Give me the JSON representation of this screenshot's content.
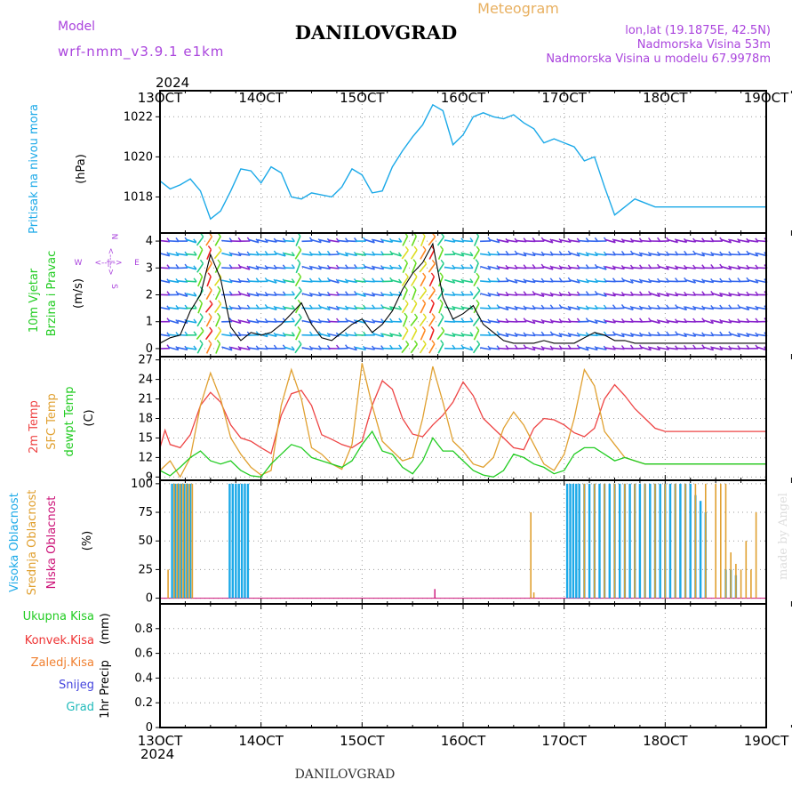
{
  "header": {
    "title": "DANILOVGRAD",
    "subtitle": "Meteogram",
    "model_label": "Model",
    "model_name": "wrf-nmm_v3.9.1  e1km",
    "lonlat": "lon,lat (19.1875E, 42.5N)",
    "elevation": "Nadmorska Visina 53m",
    "model_elevation": "Nadmorska Visina u modelu 67.9978m",
    "credit": "made by Angel",
    "footer": "DANILOVGRAD"
  },
  "colors": {
    "pressure": "#1ba9e8",
    "wind_speed": "#000000",
    "temp2m": "#ee4444",
    "sfc_temp": "#e0a030",
    "dewpoint": "#22cc22",
    "cloud_high": "#1ba9e8",
    "cloud_mid": "#e0a030",
    "cloud_low": "#cc1177",
    "precip_total": "#22cc22",
    "precip_conv": "#ee3333",
    "precip_frz": "#f08030",
    "snow": "#4444dd",
    "hail": "#22bbbb",
    "compass": "#aa44dd",
    "model_text": "#aa44dd",
    "grid": "#999999"
  },
  "chart_data": [
    {
      "type": "line",
      "id": "pressure",
      "ylabel": "Pritisak na nivou mora",
      "unit": "(hPa)",
      "ylim": [
        1016.2,
        1023.3
      ],
      "yticks": [
        1018,
        1020,
        1022
      ],
      "x_ticks": [
        "13OCT",
        "14OCT",
        "15OCT",
        "16OCT",
        "17OCT",
        "18OCT",
        "19OCT"
      ],
      "year": "2024",
      "series": [
        {
          "color_key": "pressure",
          "x": [
            0,
            0.1,
            0.2,
            0.3,
            0.4,
            0.5,
            0.6,
            0.7,
            0.8,
            0.9,
            1.0,
            1.1,
            1.2,
            1.3,
            1.4,
            1.5,
            1.6,
            1.7,
            1.8,
            1.9,
            2.0,
            2.1,
            2.2,
            2.3,
            2.4,
            2.5,
            2.6,
            2.7,
            2.8,
            2.9,
            3.0,
            3.1,
            3.2,
            3.3,
            3.4,
            3.5,
            3.6,
            3.7,
            3.8,
            3.9,
            4.0,
            4.1,
            4.2,
            4.3,
            4.4,
            4.5,
            4.6,
            4.7,
            4.8,
            4.9,
            5.0,
            5.1,
            5.2,
            5.3,
            5.4,
            5.5,
            5.6,
            5.7,
            5.8,
            5.9,
            6.0
          ],
          "y": [
            1018.8,
            1018.4,
            1018.6,
            1018.9,
            1018.3,
            1016.9,
            1017.3,
            1018.3,
            1019.4,
            1019.3,
            1018.7,
            1019.5,
            1019.2,
            1018.0,
            1017.9,
            1018.2,
            1018.1,
            1018.0,
            1018.5,
            1019.4,
            1019.1,
            1018.2,
            1018.3,
            1019.5,
            1020.3,
            1021.0,
            1021.6,
            1022.6,
            1022.3,
            1020.6,
            1021.1,
            1022.0,
            1022.2,
            1022.0,
            1021.9,
            1022.1,
            1021.7,
            1021.4,
            1020.7,
            1020.9,
            1020.7,
            1020.5,
            1019.8,
            1020.0,
            1018.5,
            1017.1,
            1017.5,
            1017.9,
            1017.7,
            1017.5,
            1017.5,
            1017.5,
            1017.5,
            1017.5,
            1017.5,
            1017.5,
            1017.5,
            1017.5,
            1017.5,
            1017.5,
            1017.5
          ]
        }
      ]
    },
    {
      "type": "line",
      "id": "wind",
      "ylabel_1": "10m Vjetar",
      "ylabel_2": "Brzina i Pravac",
      "unit": "(m/s)",
      "compass": {
        "n": "N",
        "s": "S",
        "e": "E",
        "w": "W",
        "arrows": "<--|-->"
      },
      "ylim": [
        -0.3,
        4.3
      ],
      "yticks": [
        0,
        1,
        2,
        3,
        4
      ],
      "speed": {
        "x": [
          0,
          0.1,
          0.2,
          0.3,
          0.4,
          0.5,
          0.6,
          0.7,
          0.8,
          0.9,
          1.0,
          1.1,
          1.2,
          1.3,
          1.4,
          1.5,
          1.6,
          1.7,
          1.8,
          1.9,
          2.0,
          2.1,
          2.2,
          2.3,
          2.4,
          2.5,
          2.6,
          2.7,
          2.8,
          2.9,
          3.0,
          3.1,
          3.2,
          3.3,
          3.4,
          3.5,
          3.6,
          3.7,
          3.8,
          3.9,
          4.0,
          4.1,
          4.2,
          4.3,
          4.4,
          4.5,
          4.6,
          4.7,
          4.8,
          4.9,
          5.0,
          5.1,
          5.2,
          5.3,
          5.4,
          5.5,
          5.6,
          5.7,
          5.8,
          5.9,
          6.0
        ],
        "y": [
          0.2,
          0.4,
          0.5,
          1.4,
          2.0,
          3.5,
          2.6,
          0.8,
          0.3,
          0.6,
          0.5,
          0.6,
          0.9,
          1.3,
          1.7,
          0.9,
          0.4,
          0.3,
          0.6,
          0.9,
          1.1,
          0.6,
          0.9,
          1.4,
          2.2,
          2.8,
          3.2,
          3.9,
          1.9,
          1.1,
          1.3,
          1.6,
          0.9,
          0.6,
          0.3,
          0.2,
          0.2,
          0.2,
          0.3,
          0.2,
          0.2,
          0.2,
          0.4,
          0.6,
          0.5,
          0.3,
          0.3,
          0.2,
          0.2,
          0.2,
          0.2,
          0.2,
          0.2,
          0.2,
          0.2,
          0.2,
          0.2,
          0.2,
          0.2,
          0.2,
          0.2
        ]
      },
      "barb_rows": [
        0,
        0.5,
        1,
        1.5,
        2,
        2.5,
        3,
        3.5,
        4
      ]
    },
    {
      "type": "line",
      "id": "temperature",
      "ylabel_1": "2m Temp",
      "ylabel_2": "SFC Temp",
      "ylabel_3": "dewpt Temp",
      "unit": "(C)",
      "ylim": [
        8.5,
        27.5
      ],
      "yticks": [
        9,
        12,
        15,
        18,
        21,
        24,
        27
      ],
      "series": [
        {
          "name": "2m Temp",
          "color_key": "temp2m",
          "x": [
            0,
            0.05,
            0.1,
            0.2,
            0.3,
            0.4,
            0.5,
            0.6,
            0.7,
            0.8,
            0.9,
            1.0,
            1.1,
            1.2,
            1.3,
            1.4,
            1.5,
            1.6,
            1.7,
            1.8,
            1.9,
            2.0,
            2.1,
            2.2,
            2.3,
            2.4,
            2.5,
            2.6,
            2.7,
            2.8,
            2.9,
            3.0,
            3.1,
            3.2,
            3.3,
            3.4,
            3.5,
            3.6,
            3.7,
            3.8,
            3.9,
            4.0,
            4.1,
            4.2,
            4.3,
            4.4,
            4.5,
            4.6,
            4.7,
            4.8,
            4.9,
            5.0,
            5.1,
            5.2,
            5.3,
            5.4,
            5.5,
            5.6,
            5.7,
            5.8,
            5.9,
            6.0
          ],
          "y": [
            13.5,
            16.2,
            14.0,
            13.5,
            15.5,
            20.0,
            22.0,
            20.5,
            17.0,
            15.0,
            14.5,
            13.5,
            12.6,
            18.5,
            21.8,
            22.3,
            20.0,
            15.5,
            14.8,
            14.0,
            13.5,
            14.5,
            20.0,
            23.8,
            22.5,
            18.0,
            15.6,
            15.2,
            17.0,
            18.5,
            20.5,
            23.6,
            21.5,
            18.0,
            16.5,
            15.0,
            13.5,
            13.2,
            16.5,
            18.0,
            17.8,
            17.0,
            15.8,
            15.2,
            16.5,
            21.0,
            23.2,
            21.5,
            19.5,
            18.0,
            16.5,
            16.0,
            16.0,
            16.0,
            16.0,
            16.0,
            16.0,
            16.0,
            16.0,
            16.0,
            16.0,
            16.0
          ]
        },
        {
          "name": "SFC Temp",
          "color_key": "sfc_temp",
          "x": [
            0,
            0.1,
            0.2,
            0.3,
            0.4,
            0.5,
            0.6,
            0.7,
            0.8,
            0.9,
            1.0,
            1.1,
            1.2,
            1.3,
            1.4,
            1.5,
            1.6,
            1.7,
            1.8,
            1.9,
            2.0,
            2.1,
            2.2,
            2.3,
            2.4,
            2.5,
            2.6,
            2.7,
            2.8,
            2.9,
            3.0,
            3.1,
            3.2,
            3.3,
            3.4,
            3.5,
            3.6,
            3.7,
            3.8,
            3.9,
            4.0,
            4.1,
            4.2,
            4.3,
            4.4,
            4.5,
            4.6,
            4.7,
            4.8,
            4.9,
            5.0,
            5.1,
            5.2,
            5.3,
            5.4,
            5.5,
            5.6,
            5.7,
            5.8,
            5.9,
            6.0
          ],
          "y": [
            10.0,
            11.5,
            9.0,
            12.0,
            20.0,
            25.0,
            21.0,
            15.0,
            12.5,
            10.5,
            9.3,
            10.0,
            20.0,
            25.5,
            21.0,
            13.5,
            12.5,
            11.0,
            10.2,
            14.0,
            26.5,
            20.0,
            14.5,
            13.0,
            11.5,
            12.0,
            18.0,
            26.0,
            20.5,
            14.5,
            13.0,
            11.0,
            10.5,
            12.0,
            16.5,
            19.0,
            17.0,
            14.0,
            11.0,
            10.0,
            12.5,
            18.0,
            25.5,
            23.0,
            16.0,
            14.0,
            12.0,
            11.5,
            11.0,
            11.0,
            11.0,
            11.0,
            11.0,
            11.0,
            11.0,
            11.0,
            11.0,
            11.0,
            11.0,
            11.0,
            11.0
          ]
        },
        {
          "name": "dewpt Temp",
          "color_key": "dewpoint",
          "x": [
            0,
            0.1,
            0.2,
            0.3,
            0.4,
            0.5,
            0.6,
            0.7,
            0.8,
            0.9,
            1.0,
            1.1,
            1.2,
            1.3,
            1.4,
            1.5,
            1.6,
            1.7,
            1.8,
            1.9,
            2.0,
            2.1,
            2.2,
            2.3,
            2.4,
            2.5,
            2.6,
            2.7,
            2.8,
            2.9,
            3.0,
            3.1,
            3.2,
            3.3,
            3.4,
            3.5,
            3.6,
            3.7,
            3.8,
            3.9,
            4.0,
            4.1,
            4.2,
            4.3,
            4.4,
            4.5,
            4.6,
            4.7,
            4.8,
            4.9,
            5.0,
            5.1,
            5.2,
            5.3,
            5.4,
            5.5,
            5.6,
            5.7,
            5.8,
            5.9,
            6.0
          ],
          "y": [
            10.0,
            9.2,
            10.5,
            12.0,
            13.0,
            11.5,
            11.0,
            11.5,
            10.0,
            9.2,
            9.0,
            11.0,
            12.5,
            14.0,
            13.5,
            12.0,
            11.5,
            11.0,
            10.5,
            11.5,
            14.0,
            16.0,
            13.0,
            12.5,
            10.5,
            9.5,
            11.5,
            15.0,
            13.0,
            13.0,
            11.5,
            10.0,
            9.3,
            9.0,
            10.0,
            12.5,
            12.0,
            11.0,
            10.5,
            9.5,
            10.0,
            12.5,
            13.5,
            13.5,
            12.5,
            11.5,
            12.0,
            11.5,
            11.0,
            11.0,
            11.0,
            11.0,
            11.0,
            11.0,
            11.0,
            11.0,
            11.0,
            11.0,
            11.0,
            11.0,
            11.0
          ]
        }
      ]
    },
    {
      "type": "bar",
      "id": "clouds",
      "ylabel_1": "Visoka Oblacnost",
      "ylabel_2": "Srednja Oblacnost",
      "ylabel_3": "Niska Oblacnost",
      "unit": "(%)",
      "ylim": [
        -5,
        103
      ],
      "yticks": [
        0,
        25,
        50,
        75,
        100
      ],
      "high": {
        "color_key": "cloud_high",
        "x": [
          0.12,
          0.15,
          0.18,
          0.21,
          0.24,
          0.27,
          0.3,
          0.69,
          0.72,
          0.75,
          0.78,
          0.81,
          0.84,
          0.87,
          4.03,
          4.06,
          4.09,
          4.12,
          4.15,
          4.2,
          4.25,
          4.3,
          4.35,
          4.4,
          4.45,
          4.5,
          4.55,
          4.6,
          4.65,
          4.7,
          4.75,
          4.8,
          4.85,
          4.9,
          4.95,
          5.0,
          5.05,
          5.1,
          5.15,
          5.2,
          5.25,
          5.3,
          5.35,
          5.4,
          5.6,
          5.65,
          5.7
        ],
        "y": [
          100,
          100,
          100,
          100,
          100,
          100,
          100,
          100,
          100,
          100,
          100,
          100,
          100,
          100,
          100,
          100,
          100,
          100,
          100,
          100,
          100,
          100,
          100,
          100,
          100,
          100,
          100,
          100,
          100,
          100,
          100,
          100,
          100,
          100,
          100,
          100,
          100,
          100,
          100,
          100,
          100,
          90,
          85,
          75,
          25,
          25,
          20
        ]
      },
      "mid": {
        "color_key": "cloud_mid",
        "x": [
          0.08,
          0.14,
          0.17,
          0.2,
          0.23,
          0.26,
          0.29,
          0.32,
          3.67,
          3.7,
          4.2,
          4.3,
          4.4,
          4.5,
          4.6,
          4.7,
          4.8,
          4.9,
          5.0,
          5.1,
          5.2,
          5.3,
          5.4,
          5.5,
          5.55,
          5.6,
          5.65,
          5.7,
          5.75,
          5.8,
          5.85,
          5.9,
          5.95,
          6.0
        ],
        "y": [
          25,
          100,
          100,
          100,
          100,
          100,
          100,
          100,
          75,
          5,
          100,
          100,
          100,
          100,
          100,
          100,
          100,
          100,
          100,
          100,
          100,
          100,
          100,
          100,
          100,
          100,
          40,
          30,
          25,
          50,
          25,
          75,
          0,
          0
        ]
      },
      "low": {
        "color_key": "cloud_low",
        "x": [
          2.72
        ],
        "y": [
          8
        ]
      }
    },
    {
      "type": "line",
      "id": "precip",
      "legend": [
        "Ukupna Kisa",
        "Konvek.Kisa",
        "Zaledj.Kisa",
        "Snijeg",
        "Grad"
      ],
      "ylabel": "1hr Precip",
      "unit": "(mm)",
      "ylim": [
        0,
        1.0
      ],
      "yticks": [
        0,
        0.2,
        0.4,
        0.6,
        0.8
      ],
      "ytick_labels": [
        "0",
        "0.2",
        "0.4",
        "0.6",
        "0.8"
      ],
      "x_ticks": [
        "13OCT",
        "14OCT",
        "15OCT",
        "16OCT",
        "17OCT",
        "18OCT",
        "19OCT"
      ],
      "year": "2024",
      "series": []
    }
  ]
}
